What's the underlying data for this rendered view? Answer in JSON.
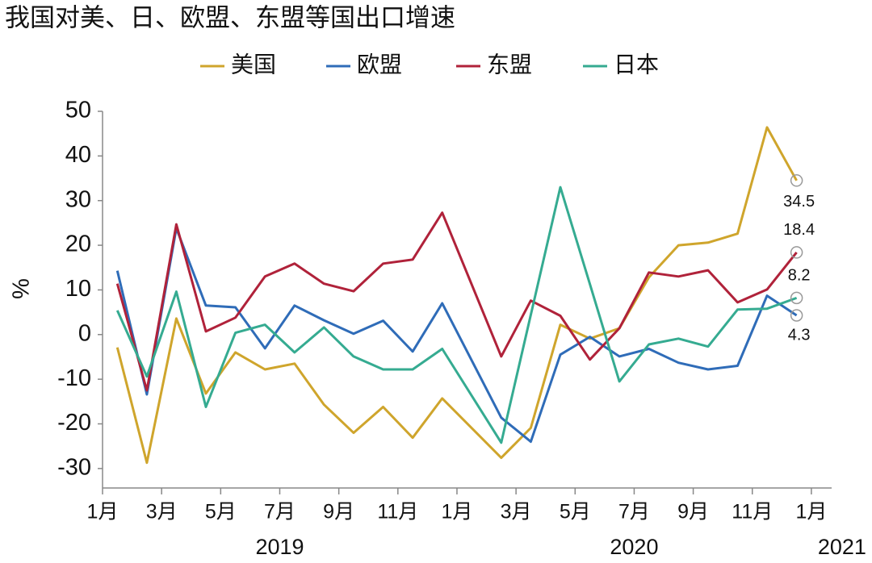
{
  "chart_data": {
    "type": "line",
    "title": "我国对美、日、欧盟、东盟等国出口增速",
    "ylabel": "%",
    "x": [
      "2019-01",
      "2019-02",
      "2019-03",
      "2019-04",
      "2019-05",
      "2019-06",
      "2019-07",
      "2019-08",
      "2019-09",
      "2019-10",
      "2019-11",
      "2019-12",
      "2020-02",
      "2020-03",
      "2020-04",
      "2020-05",
      "2020-06",
      "2020-07",
      "2020-08",
      "2020-09",
      "2020-10",
      "2020-11",
      "2020-12"
    ],
    "xticks": [
      {
        "value": "2019-01",
        "label": "1月"
      },
      {
        "value": "2019-03",
        "label": "3月"
      },
      {
        "value": "2019-05",
        "label": "5月"
      },
      {
        "value": "2019-07",
        "label": "7月"
      },
      {
        "value": "2019-09",
        "label": "9月"
      },
      {
        "value": "2019-11",
        "label": "11月"
      },
      {
        "value": "2020-01",
        "label": "1月"
      },
      {
        "value": "2020-03",
        "label": "3月"
      },
      {
        "value": "2020-05",
        "label": "5月"
      },
      {
        "value": "2020-07",
        "label": "7月"
      },
      {
        "value": "2020-09",
        "label": "9月"
      },
      {
        "value": "2020-11",
        "label": "11月"
      },
      {
        "value": "2021-01",
        "label": "1月"
      }
    ],
    "year_labels": [
      "2019",
      "2020",
      "2021"
    ],
    "ylim": [
      -34,
      50
    ],
    "yticks": [
      -30,
      -20,
      -10,
      0,
      10,
      20,
      30,
      40,
      50
    ],
    "series": [
      {
        "name": "美国",
        "color": "#cfa52c",
        "values": [
          -2.9,
          -28.7,
          3.6,
          -13.2,
          -4,
          -7.8,
          -6.5,
          -15.7,
          -22,
          -16.2,
          -23.1,
          -14.3,
          -27.6,
          -20.9,
          2.2,
          -0.9,
          1.4,
          12.8,
          20,
          20.6,
          22.6,
          46.4,
          34.5
        ]
      },
      {
        "name": "欧盟",
        "color": "#2f6cb8",
        "values": [
          14.3,
          -13.4,
          23.8,
          6.5,
          6.1,
          -3.1,
          6.5,
          3.2,
          0.2,
          3.1,
          -3.8,
          7,
          -18.6,
          -24,
          -4.5,
          -0.5,
          -4.9,
          -3.2,
          -6.3,
          -7.8,
          -7,
          8.7,
          4.3
        ]
      },
      {
        "name": "东盟",
        "color": "#b0223a",
        "values": [
          11.4,
          -12.5,
          24.7,
          0.7,
          3.8,
          13,
          15.9,
          11.4,
          9.7,
          15.9,
          16.8,
          27.3,
          -4.9,
          7.6,
          4.2,
          -5.6,
          1.4,
          13.9,
          13,
          14.4,
          7.2,
          10.1,
          18.4
        ]
      },
      {
        "name": "日本",
        "color": "#35ab91",
        "values": [
          5.4,
          -9.4,
          9.6,
          -16.2,
          0.4,
          2.2,
          -4,
          1.6,
          -4.9,
          -7.8,
          -7.8,
          -3.2,
          -24.2,
          4.4,
          33,
          11.3,
          -10.5,
          -2.2,
          -0.9,
          -2.7,
          5.6,
          5.8,
          8.2
        ]
      }
    ]
  }
}
